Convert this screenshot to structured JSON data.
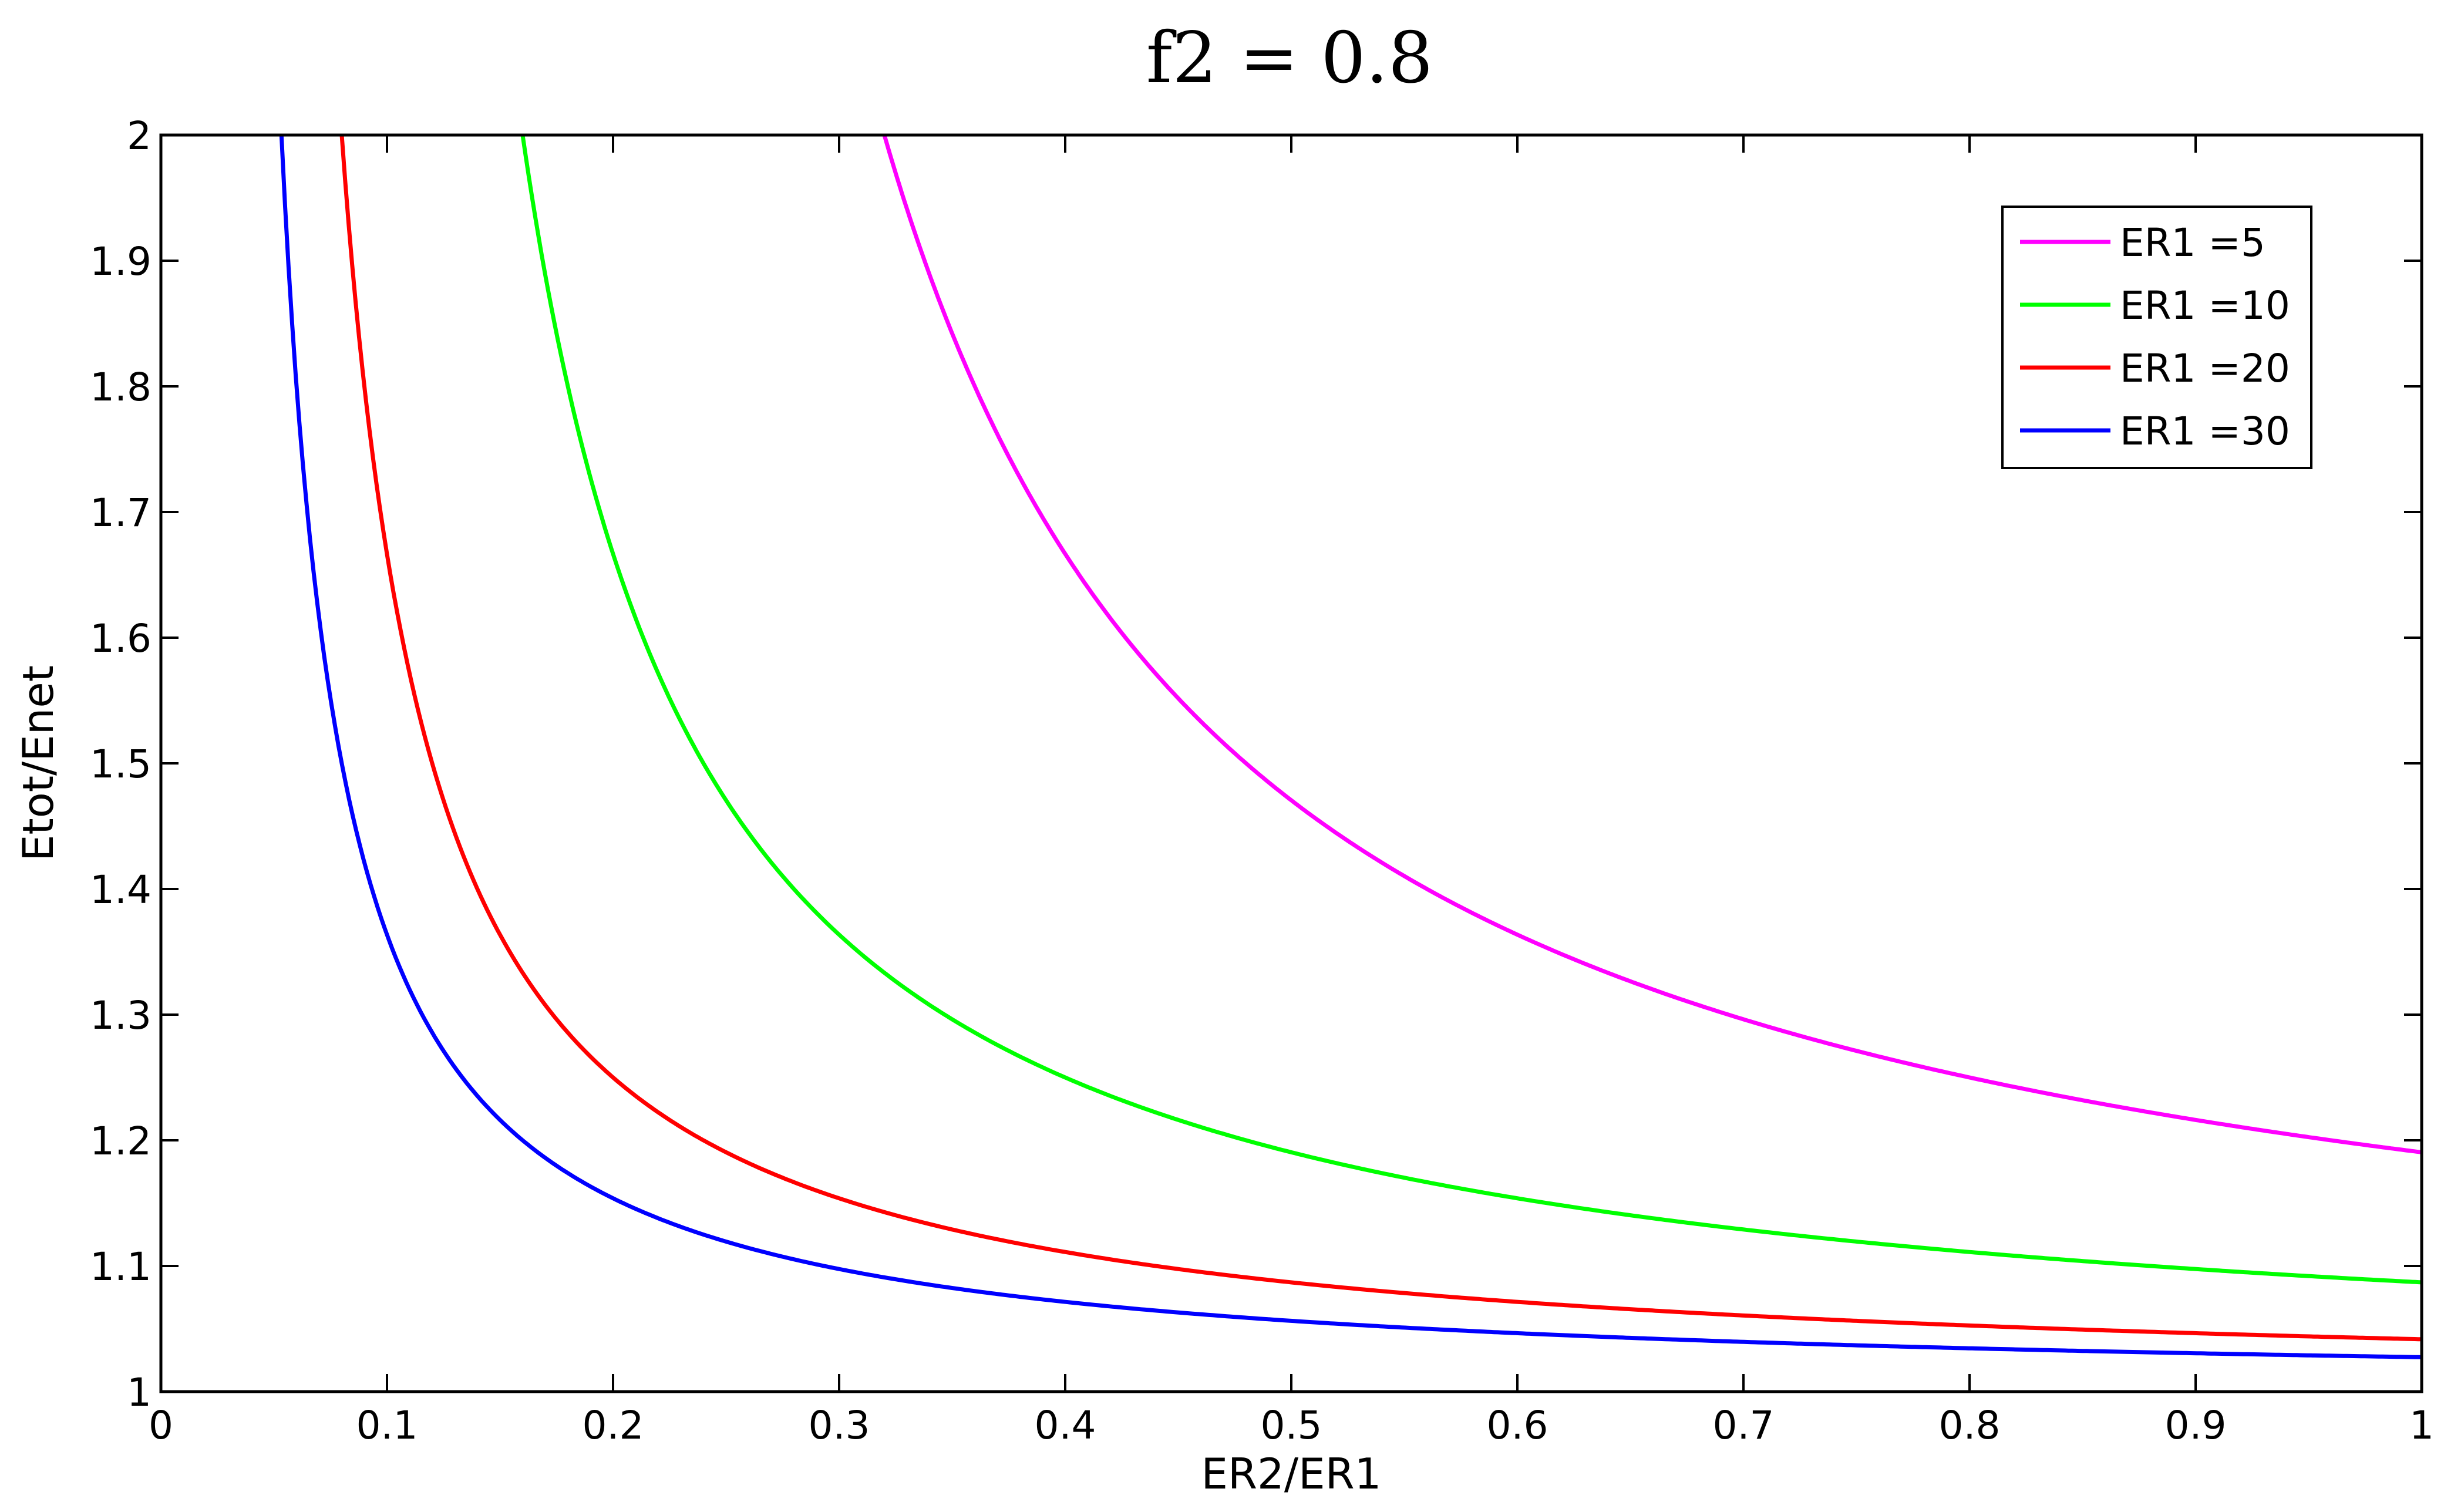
{
  "chart_data": {
    "type": "line",
    "title": "f2 = 0.8",
    "xlabel": "ER2/ER1",
    "ylabel": "Etot/Enet",
    "xlim": [
      0,
      1
    ],
    "ylim": [
      1,
      2
    ],
    "x_ticks": [
      "0",
      "0.1",
      "0.2",
      "0.3",
      "0.4",
      "0.5",
      "0.6",
      "0.7",
      "0.8",
      "0.9",
      "1"
    ],
    "y_ticks": [
      "1",
      "1.1",
      "1.2",
      "1.3",
      "1.4",
      "1.5",
      "1.6",
      "1.7",
      "1.8",
      "1.9",
      "2"
    ],
    "grid": false,
    "legend_position": "top-right",
    "formula": "y = 1 / (1 - f2 / (ER1 * x))",
    "f2": 0.8,
    "series": [
      {
        "name": "ER1 =5",
        "ER1": 5,
        "color": "#ff00ff"
      },
      {
        "name": "ER1 =10",
        "ER1": 10,
        "color": "#00ff00"
      },
      {
        "name": "ER1 =20",
        "ER1": 20,
        "color": "#ff0000"
      },
      {
        "name": "ER1 =30",
        "ER1": 30,
        "color": "#0000ff"
      }
    ]
  }
}
